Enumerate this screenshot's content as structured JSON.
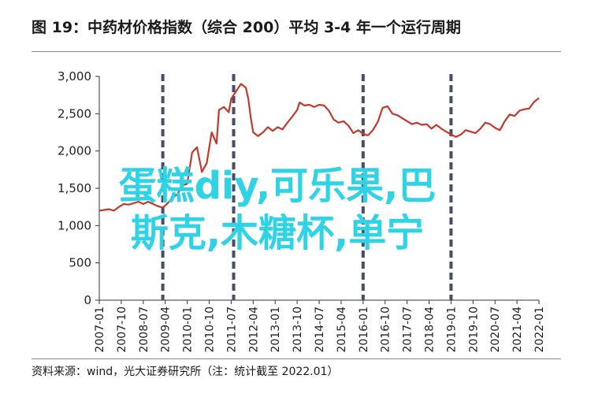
{
  "title": "图 19：中药材价格指数（综合 200）平均 3-4 年一个运行周期",
  "source": "资料来源：wind，光大证券研究所（注：统计截至 2022.01）",
  "overlay_text": [
    "蛋糕diy,可乐果,巴",
    "斯克,木糖杯,单宁"
  ],
  "colors": {
    "line": "#c0392b",
    "cycle_marker": "#4a4a6a",
    "overlay": "#2fd3e5",
    "axis": "#333333"
  },
  "chart_data": {
    "type": "line",
    "title": "中药材价格指数（综合 200）",
    "xlabel": "",
    "ylabel": "",
    "ylim": [
      0,
      3000
    ],
    "yticks": [
      0,
      500,
      1000,
      1500,
      2000,
      2500,
      3000
    ],
    "ytick_labels": [
      "0",
      "500",
      "1,000",
      "1,500",
      "2,000",
      "2,500",
      "3,000"
    ],
    "xticks": [
      "2007-01",
      "2007-10",
      "2008-07",
      "2009-04",
      "2010-01",
      "2010-10",
      "2011-07",
      "2012-04",
      "2013-01",
      "2013-10",
      "2014-07",
      "2015-04",
      "2016-01",
      "2016-10",
      "2017-07",
      "2018-04",
      "2019-01",
      "2019-10",
      "2020-07",
      "2021-04",
      "2022-01"
    ],
    "cycle_markers": [
      "2009-03",
      "2011-08",
      "2016-01",
      "2019-01"
    ],
    "grid": false,
    "series": [
      {
        "points": [
          [
            "2007-01",
            1200
          ],
          [
            "2007-03",
            1210
          ],
          [
            "2007-05",
            1220
          ],
          [
            "2007-07",
            1200
          ],
          [
            "2007-09",
            1250
          ],
          [
            "2007-11",
            1290
          ],
          [
            "2008-01",
            1280
          ],
          [
            "2008-03",
            1300
          ],
          [
            "2008-05",
            1320
          ],
          [
            "2008-07",
            1290
          ],
          [
            "2008-09",
            1320
          ],
          [
            "2008-11",
            1290
          ],
          [
            "2009-01",
            1260
          ],
          [
            "2009-03",
            1240
          ],
          [
            "2009-05",
            1300
          ],
          [
            "2009-07",
            1380
          ],
          [
            "2009-09",
            1420
          ],
          [
            "2009-11",
            1540
          ],
          [
            "2010-01",
            1560
          ],
          [
            "2010-03",
            1980
          ],
          [
            "2010-05",
            2050
          ],
          [
            "2010-07",
            1720
          ],
          [
            "2010-09",
            1840
          ],
          [
            "2010-11",
            2250
          ],
          [
            "2011-01",
            2100
          ],
          [
            "2011-02",
            2550
          ],
          [
            "2011-04",
            2590
          ],
          [
            "2011-06",
            2520
          ],
          [
            "2011-07",
            2700
          ],
          [
            "2011-09",
            2800
          ],
          [
            "2011-11",
            2900
          ],
          [
            "2012-01",
            2850
          ],
          [
            "2012-02",
            2700
          ],
          [
            "2012-03",
            2450
          ],
          [
            "2012-04",
            2250
          ],
          [
            "2012-06",
            2200
          ],
          [
            "2012-08",
            2250
          ],
          [
            "2012-10",
            2320
          ],
          [
            "2012-12",
            2270
          ],
          [
            "2013-02",
            2320
          ],
          [
            "2013-04",
            2290
          ],
          [
            "2013-06",
            2380
          ],
          [
            "2013-08",
            2460
          ],
          [
            "2013-10",
            2550
          ],
          [
            "2013-11",
            2650
          ],
          [
            "2014-01",
            2610
          ],
          [
            "2014-03",
            2620
          ],
          [
            "2014-05",
            2590
          ],
          [
            "2014-07",
            2620
          ],
          [
            "2014-09",
            2610
          ],
          [
            "2014-11",
            2540
          ],
          [
            "2015-01",
            2420
          ],
          [
            "2015-03",
            2380
          ],
          [
            "2015-05",
            2400
          ],
          [
            "2015-07",
            2340
          ],
          [
            "2015-09",
            2240
          ],
          [
            "2015-11",
            2280
          ],
          [
            "2016-01",
            2230
          ],
          [
            "2016-03",
            2210
          ],
          [
            "2016-05",
            2280
          ],
          [
            "2016-07",
            2390
          ],
          [
            "2016-09",
            2580
          ],
          [
            "2016-11",
            2600
          ],
          [
            "2017-01",
            2500
          ],
          [
            "2017-03",
            2480
          ],
          [
            "2017-05",
            2440
          ],
          [
            "2017-07",
            2400
          ],
          [
            "2017-09",
            2360
          ],
          [
            "2017-11",
            2380
          ],
          [
            "2018-01",
            2350
          ],
          [
            "2018-03",
            2360
          ],
          [
            "2018-05",
            2300
          ],
          [
            "2018-07",
            2350
          ],
          [
            "2018-09",
            2300
          ],
          [
            "2018-11",
            2260
          ],
          [
            "2019-01",
            2220
          ],
          [
            "2019-03",
            2190
          ],
          [
            "2019-05",
            2220
          ],
          [
            "2019-07",
            2280
          ],
          [
            "2019-09",
            2260
          ],
          [
            "2019-11",
            2240
          ],
          [
            "2020-01",
            2300
          ],
          [
            "2020-03",
            2380
          ],
          [
            "2020-05",
            2360
          ],
          [
            "2020-07",
            2310
          ],
          [
            "2020-09",
            2280
          ],
          [
            "2020-11",
            2400
          ],
          [
            "2021-01",
            2490
          ],
          [
            "2021-03",
            2470
          ],
          [
            "2021-05",
            2540
          ],
          [
            "2021-07",
            2560
          ],
          [
            "2021-09",
            2570
          ],
          [
            "2021-11",
            2660
          ],
          [
            "2022-01",
            2710
          ]
        ]
      }
    ]
  }
}
